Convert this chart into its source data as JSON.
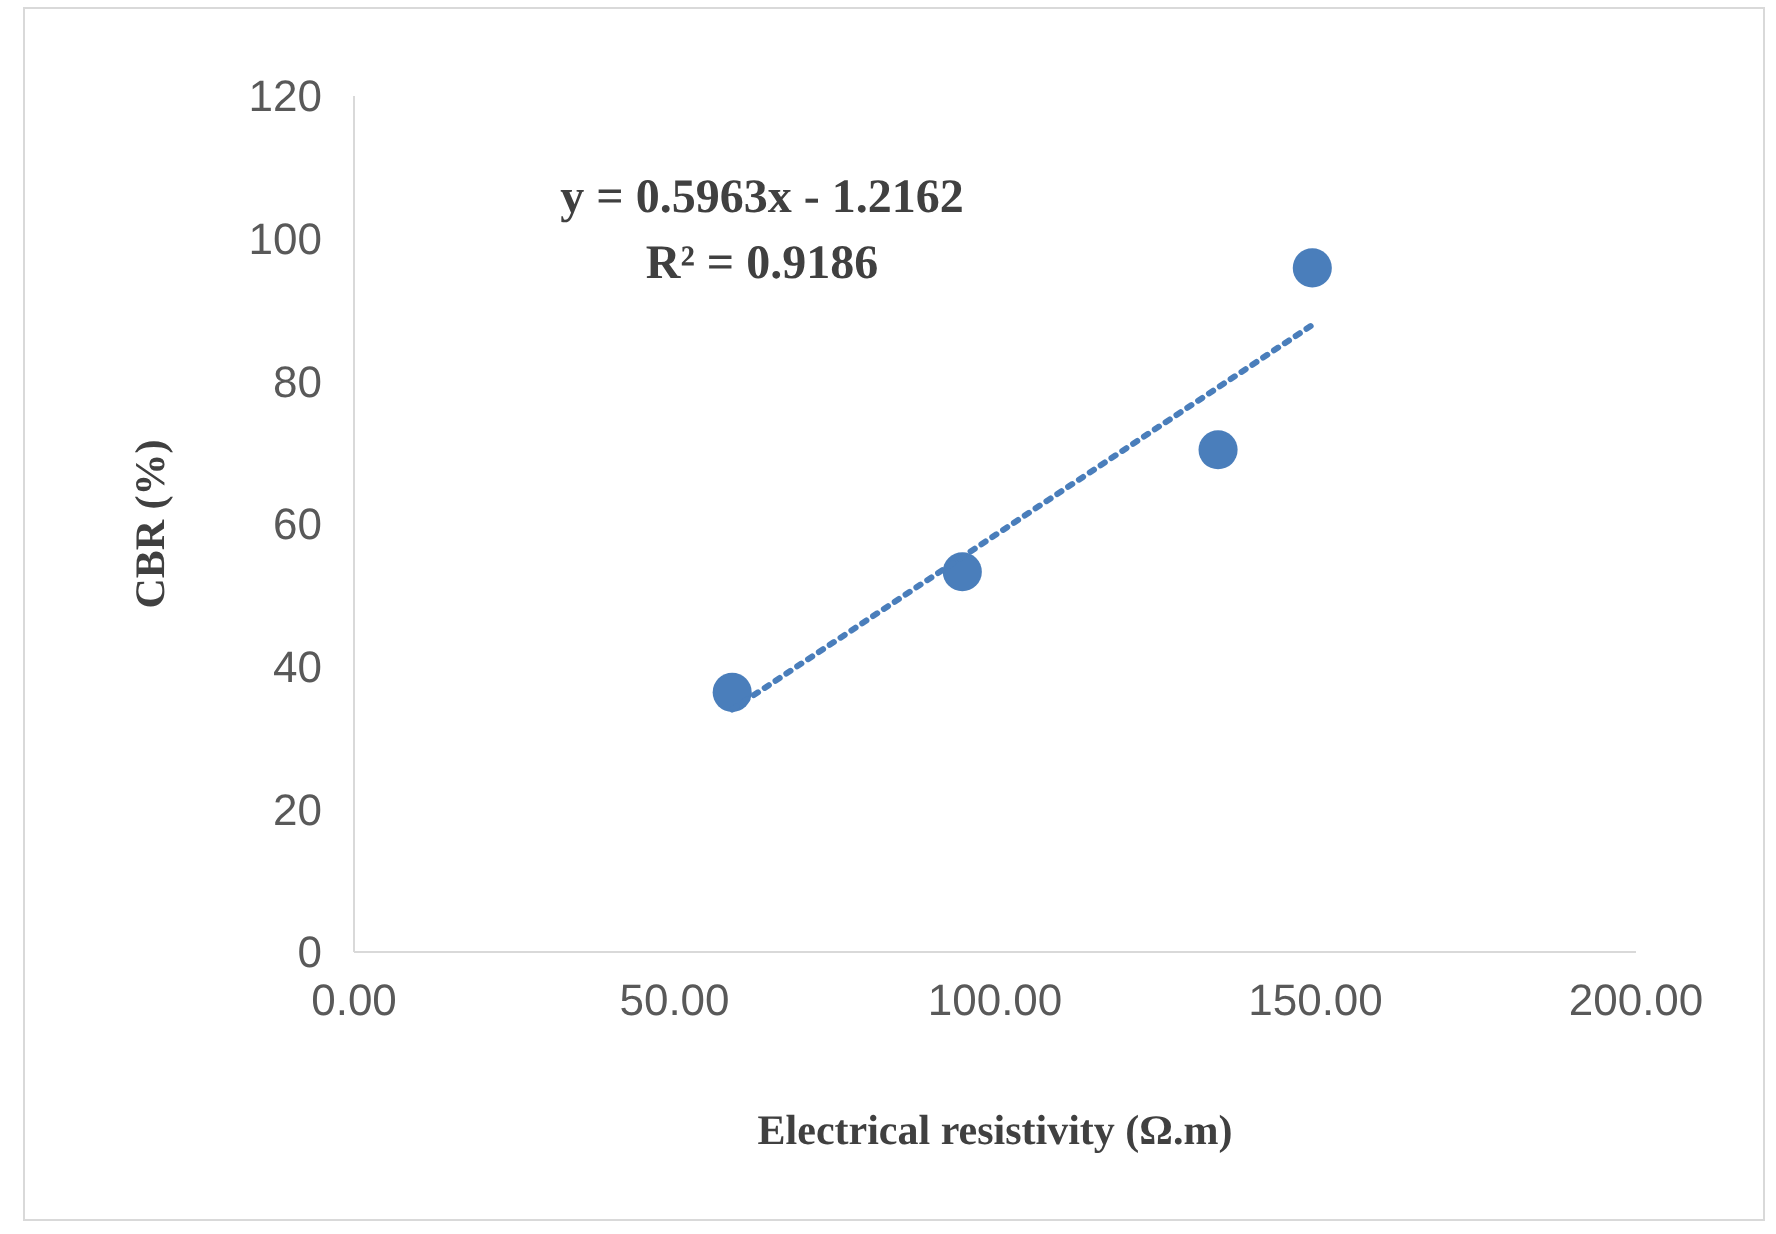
{
  "chart_data": {
    "type": "scatter",
    "xlabel": "Electrical resistivity (Ω.m)",
    "ylabel": "CBR (%)",
    "annotations": [
      "y = 0.5963x - 1.2162",
      "R² = 0.9186"
    ],
    "xlim": [
      0,
      200
    ],
    "xticks": [
      {
        "value": 0,
        "label": "0.00"
      },
      {
        "value": 50,
        "label": "50.00"
      },
      {
        "value": 100,
        "label": "100.00"
      },
      {
        "value": 150,
        "label": "150.00"
      },
      {
        "value": 200,
        "label": "200.00"
      }
    ],
    "ylim": [
      0,
      120
    ],
    "yticks": [
      0,
      20,
      40,
      60,
      80,
      100,
      120
    ],
    "grid": false,
    "series": [
      {
        "color": "#4a7ebb",
        "marker": "circle",
        "x": [
          59,
          94.9,
          134.8,
          149.5
        ],
        "values": [
          36.4,
          53.3,
          70.4,
          95.9
        ]
      },
      {
        "type": "line",
        "color": "#4a7ebb",
        "marker": "none",
        "line_style": "dotted",
        "x": [
          59,
          149.5
        ],
        "values": [
          34,
          87.9
        ]
      }
    ]
  }
}
